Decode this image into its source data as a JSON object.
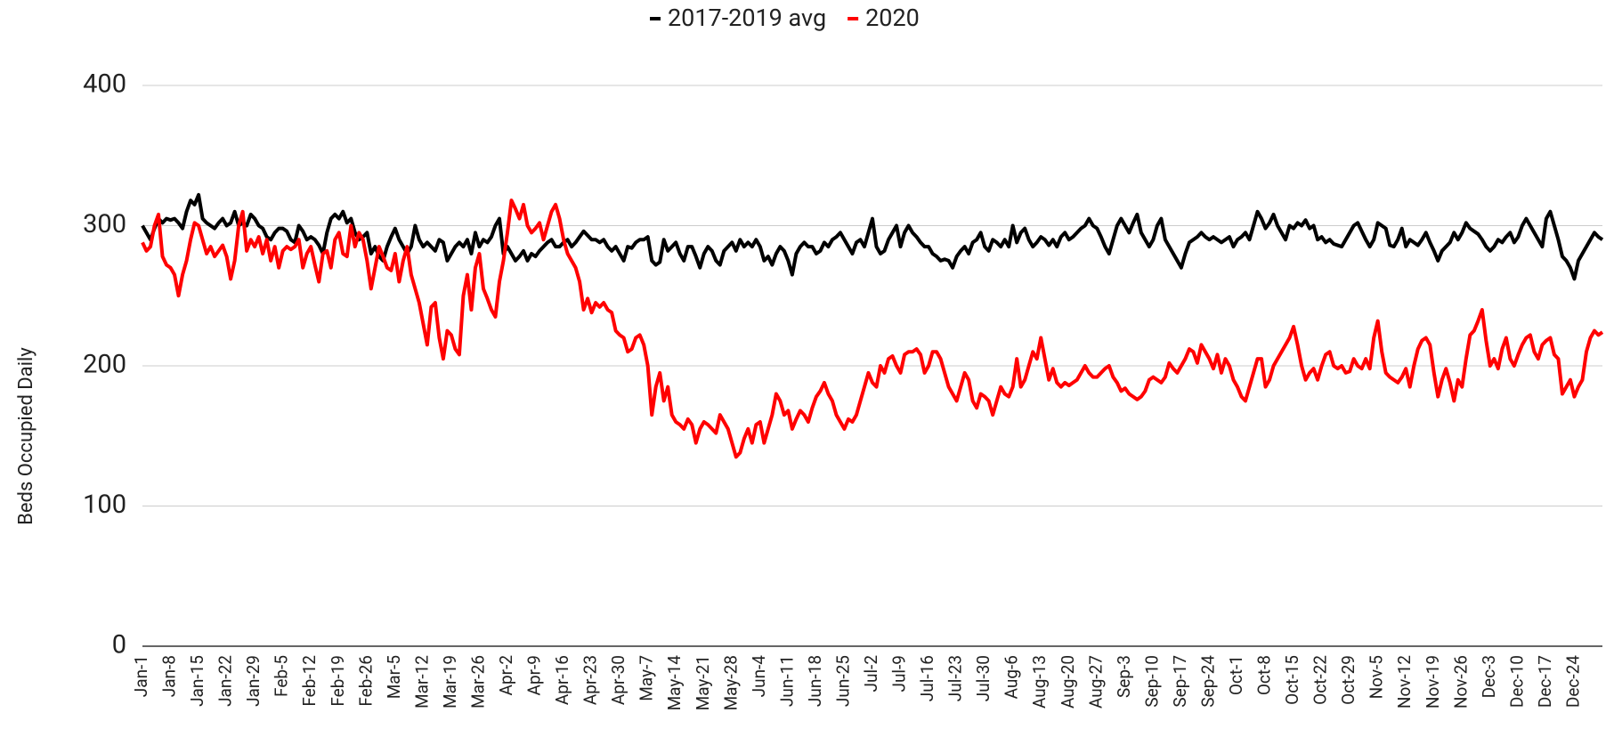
{
  "chart_data": {
    "type": "line",
    "y_label": "Beds Occupied Daily",
    "categories": [
      "Jan-1",
      null,
      null,
      null,
      null,
      null,
      null,
      "Jan-8",
      null,
      null,
      null,
      null,
      null,
      null,
      "Jan-15",
      null,
      null,
      null,
      null,
      null,
      null,
      "Jan-22",
      null,
      null,
      null,
      null,
      null,
      null,
      "Jan-29",
      null,
      null,
      null,
      null,
      null,
      null,
      "Feb-5",
      null,
      null,
      null,
      null,
      null,
      null,
      "Feb-12",
      null,
      null,
      null,
      null,
      null,
      null,
      "Feb-19",
      null,
      null,
      null,
      null,
      null,
      null,
      "Feb-26",
      null,
      null,
      null,
      null,
      null,
      null,
      "Mar-5",
      null,
      null,
      null,
      null,
      null,
      null,
      "Mar-12",
      null,
      null,
      null,
      null,
      null,
      null,
      "Mar-19",
      null,
      null,
      null,
      null,
      null,
      null,
      "Mar-26",
      null,
      null,
      null,
      null,
      null,
      null,
      "Apr-2",
      null,
      null,
      null,
      null,
      null,
      null,
      "Apr-9",
      null,
      null,
      null,
      null,
      null,
      null,
      "Apr-16",
      null,
      null,
      null,
      null,
      null,
      null,
      "Apr-23",
      null,
      null,
      null,
      null,
      null,
      null,
      "Apr-30",
      null,
      null,
      null,
      null,
      null,
      null,
      "May-7",
      null,
      null,
      null,
      null,
      null,
      null,
      "May-14",
      null,
      null,
      null,
      null,
      null,
      null,
      "May-21",
      null,
      null,
      null,
      null,
      null,
      null,
      "May-28",
      null,
      null,
      null,
      null,
      null,
      null,
      "Jun-4",
      null,
      null,
      null,
      null,
      null,
      null,
      "Jun-11",
      null,
      null,
      null,
      null,
      null,
      null,
      "Jun-18",
      null,
      null,
      null,
      null,
      null,
      null,
      "Jun-25",
      null,
      null,
      null,
      null,
      null,
      null,
      "Jul-2",
      null,
      null,
      null,
      null,
      null,
      null,
      "Jul-9",
      null,
      null,
      null,
      null,
      null,
      null,
      "Jul-16",
      null,
      null,
      null,
      null,
      null,
      null,
      "Jul-23",
      null,
      null,
      null,
      null,
      null,
      null,
      "Jul-30",
      null,
      null,
      null,
      null,
      null,
      null,
      "Aug-6",
      null,
      null,
      null,
      null,
      null,
      null,
      "Aug-13",
      null,
      null,
      null,
      null,
      null,
      null,
      "Aug-20",
      null,
      null,
      null,
      null,
      null,
      null,
      "Aug-27",
      null,
      null,
      null,
      null,
      null,
      null,
      "Sep-3",
      null,
      null,
      null,
      null,
      null,
      null,
      "Sep-10",
      null,
      null,
      null,
      null,
      null,
      null,
      "Sep-17",
      null,
      null,
      null,
      null,
      null,
      null,
      "Sep-24",
      null,
      null,
      null,
      null,
      null,
      null,
      "Oct-1",
      null,
      null,
      null,
      null,
      null,
      null,
      "Oct-8",
      null,
      null,
      null,
      null,
      null,
      null,
      "Oct-15",
      null,
      null,
      null,
      null,
      null,
      null,
      "Oct-22",
      null,
      null,
      null,
      null,
      null,
      null,
      "Oct-29",
      null,
      null,
      null,
      null,
      null,
      null,
      "Nov-5",
      null,
      null,
      null,
      null,
      null,
      null,
      "Nov-12",
      null,
      null,
      null,
      null,
      null,
      null,
      "Nov-19",
      null,
      null,
      null,
      null,
      null,
      null,
      "Nov-26",
      null,
      null,
      null,
      null,
      null,
      null,
      "Dec-3",
      null,
      null,
      null,
      null,
      null,
      null,
      "Dec-10",
      null,
      null,
      null,
      null,
      null,
      null,
      "Dec-17",
      null,
      null,
      null,
      null,
      null,
      null,
      "Dec-24",
      null,
      null,
      null,
      null,
      null,
      null,
      null
    ],
    "series": [
      {
        "name": "2017-2019 avg",
        "color": "#000000",
        "values": [
          300,
          295,
          290,
          298,
          305,
          302,
          305,
          304,
          305,
          302,
          298,
          310,
          318,
          315,
          322,
          305,
          302,
          300,
          298,
          302,
          305,
          300,
          302,
          310,
          300,
          302,
          300,
          308,
          305,
          300,
          298,
          292,
          290,
          295,
          298,
          298,
          296,
          290,
          288,
          300,
          296,
          290,
          292,
          290,
          286,
          280,
          295,
          305,
          308,
          305,
          310,
          302,
          305,
          295,
          290,
          292,
          295,
          280,
          285,
          278,
          275,
          285,
          292,
          298,
          290,
          285,
          280,
          285,
          300,
          290,
          285,
          288,
          285,
          282,
          290,
          288,
          275,
          280,
          285,
          288,
          285,
          290,
          280,
          295,
          285,
          290,
          288,
          292,
          300,
          305,
          280,
          285,
          280,
          275,
          278,
          282,
          275,
          280,
          278,
          282,
          285,
          288,
          290,
          285,
          285,
          288,
          290,
          285,
          288,
          292,
          296,
          293,
          290,
          290,
          288,
          290,
          285,
          282,
          285,
          280,
          275,
          285,
          284,
          288,
          290,
          290,
          292,
          275,
          272,
          274,
          290,
          282,
          285,
          288,
          280,
          275,
          285,
          285,
          278,
          270,
          280,
          285,
          282,
          275,
          272,
          282,
          285,
          288,
          282,
          290,
          285,
          288,
          285,
          290,
          285,
          275,
          278,
          272,
          280,
          285,
          282,
          275,
          265,
          280,
          285,
          288,
          285,
          285,
          280,
          282,
          288,
          285,
          290,
          292,
          295,
          290,
          285,
          280,
          288,
          290,
          285,
          295,
          305,
          285,
          280,
          282,
          290,
          295,
          300,
          285,
          295,
          300,
          295,
          292,
          288,
          285,
          285,
          280,
          278,
          275,
          276,
          275,
          270,
          278,
          282,
          285,
          280,
          288,
          290,
          295,
          285,
          282,
          290,
          288,
          285,
          290,
          285,
          300,
          288,
          295,
          298,
          290,
          285,
          288,
          292,
          290,
          286,
          290,
          285,
          292,
          295,
          290,
          292,
          295,
          298,
          300,
          305,
          300,
          298,
          292,
          285,
          280,
          290,
          300,
          305,
          300,
          295,
          302,
          308,
          295,
          290,
          285,
          290,
          300,
          305,
          290,
          285,
          280,
          275,
          270,
          280,
          288,
          290,
          292,
          295,
          292,
          290,
          292,
          290,
          288,
          290,
          292,
          285,
          290,
          292,
          295,
          290,
          300,
          310,
          305,
          298,
          302,
          308,
          300,
          295,
          290,
          300,
          298,
          302,
          300,
          304,
          298,
          300,
          290,
          292,
          288,
          290,
          287,
          286,
          285,
          290,
          295,
          300,
          302,
          296,
          290,
          285,
          290,
          302,
          300,
          298,
          286,
          285,
          290,
          298,
          285,
          290,
          288,
          286,
          290,
          295,
          288,
          282,
          275,
          282,
          285,
          288,
          295,
          290,
          295,
          302,
          298,
          296,
          294,
          290,
          285,
          282,
          285,
          290,
          288,
          292,
          295,
          288,
          292,
          300,
          305,
          300,
          295,
          290,
          285,
          305,
          310,
          300,
          290,
          278,
          275,
          270,
          262,
          275,
          280,
          285,
          290,
          295,
          292,
          290
        ]
      },
      {
        "name": "2020",
        "color": "#ff0000",
        "values": [
          288,
          282,
          285,
          300,
          308,
          278,
          272,
          270,
          265,
          250,
          265,
          275,
          290,
          302,
          300,
          290,
          280,
          285,
          278,
          282,
          286,
          278,
          262,
          275,
          300,
          310,
          282,
          290,
          285,
          292,
          280,
          290,
          275,
          285,
          270,
          282,
          285,
          283,
          285,
          290,
          270,
          280,
          285,
          272,
          260,
          280,
          282,
          270,
          290,
          295,
          280,
          278,
          300,
          285,
          295,
          290,
          275,
          255,
          270,
          285,
          278,
          270,
          268,
          280,
          260,
          275,
          285,
          265,
          255,
          245,
          230,
          215,
          242,
          245,
          220,
          205,
          225,
          222,
          212,
          208,
          250,
          265,
          240,
          270,
          280,
          255,
          248,
          240,
          235,
          260,
          275,
          295,
          318,
          312,
          305,
          315,
          300,
          295,
          298,
          302,
          290,
          300,
          310,
          315,
          305,
          290,
          280,
          275,
          270,
          260,
          240,
          248,
          238,
          245,
          242,
          245,
          240,
          238,
          225,
          222,
          220,
          210,
          212,
          220,
          222,
          215,
          200,
          165,
          185,
          195,
          175,
          185,
          165,
          160,
          158,
          155,
          162,
          158,
          145,
          155,
          160,
          158,
          155,
          152,
          165,
          160,
          155,
          145,
          135,
          138,
          148,
          155,
          145,
          158,
          160,
          145,
          155,
          165,
          180,
          175,
          165,
          168,
          155,
          162,
          168,
          165,
          160,
          170,
          178,
          182,
          188,
          180,
          175,
          165,
          160,
          155,
          162,
          160,
          165,
          175,
          185,
          195,
          188,
          185,
          200,
          195,
          205,
          207,
          200,
          195,
          208,
          210,
          210,
          212,
          208,
          195,
          200,
          210,
          210,
          205,
          195,
          185,
          180,
          175,
          185,
          195,
          190,
          175,
          170,
          180,
          178,
          175,
          165,
          175,
          185,
          180,
          178,
          185,
          205,
          185,
          190,
          200,
          210,
          205,
          220,
          205,
          190,
          198,
          188,
          185,
          188,
          186,
          188,
          190,
          195,
          200,
          195,
          192,
          192,
          195,
          198,
          200,
          192,
          188,
          182,
          184,
          180,
          178,
          176,
          178,
          182,
          190,
          192,
          190,
          188,
          192,
          202,
          198,
          195,
          200,
          205,
          212,
          210,
          202,
          215,
          210,
          205,
          198,
          208,
          195,
          205,
          200,
          190,
          185,
          178,
          175,
          185,
          195,
          205,
          205,
          185,
          190,
          200,
          205,
          210,
          215,
          220,
          228,
          215,
          200,
          190,
          195,
          198,
          190,
          200,
          208,
          210,
          200,
          198,
          200,
          195,
          196,
          205,
          200,
          198,
          205,
          198,
          220,
          232,
          210,
          195,
          192,
          190,
          188,
          192,
          198,
          185,
          200,
          212,
          218,
          220,
          215,
          195,
          178,
          190,
          198,
          188,
          175,
          190,
          185,
          205,
          222,
          225,
          232,
          240,
          218,
          200,
          205,
          198,
          212,
          220,
          205,
          200,
          208,
          215,
          220,
          222,
          210,
          205,
          215,
          218,
          220,
          208,
          205,
          180,
          185,
          190,
          178,
          185,
          190,
          210,
          220,
          225,
          222,
          224
        ]
      }
    ],
    "ylim": [
      0,
      400
    ],
    "yticks": [
      0,
      100,
      200,
      300,
      400
    ],
    "grid": true,
    "legend": "top"
  }
}
